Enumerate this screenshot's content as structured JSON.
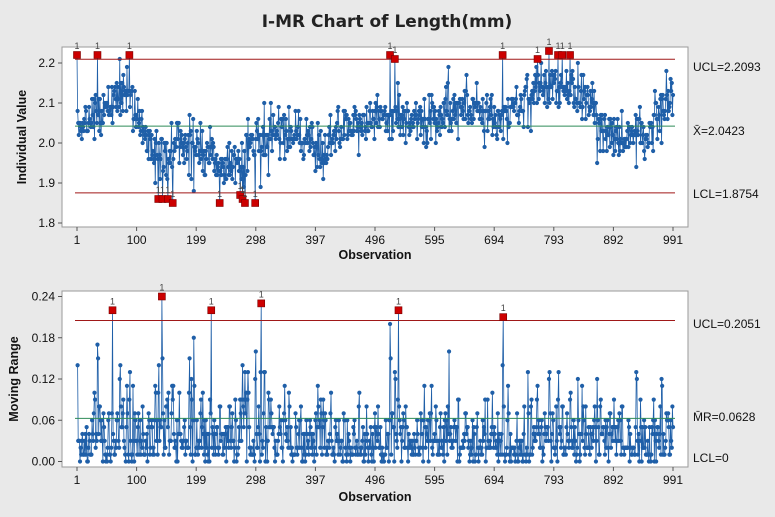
{
  "chart_data": {
    "type": "line",
    "title": "I-MR Chart of Length(mm)",
    "n_observations": 991,
    "colors": {
      "line": "#1f5fa8",
      "point": "#1f5fa8",
      "out_of_control": "#cc0000",
      "limit": "#a01818",
      "center": "#2e8b57"
    },
    "charts": [
      {
        "name": "individual",
        "xlabel": "Observation",
        "ylabel": "Individual Value",
        "x_ticks": [
          "1",
          "100",
          "199",
          "298",
          "397",
          "496",
          "595",
          "694",
          "793",
          "892",
          "991"
        ],
        "y_ticks": [
          "1.8",
          "1.9",
          "2.0",
          "2.1",
          "2.2"
        ],
        "ylim": [
          1.79,
          2.24
        ],
        "ucl": 2.2093,
        "center": 2.0423,
        "lcl": 1.8754,
        "ucl_label": "UCL=2.2093",
        "center_label": "X̄=2.0423",
        "lcl_label": "LCL=1.8754",
        "flag_text": "1",
        "trend": [
          [
            1,
            2.04
          ],
          [
            30,
            2.07
          ],
          [
            60,
            2.11
          ],
          [
            90,
            2.13
          ],
          [
            110,
            2.02
          ],
          [
            140,
            1.95
          ],
          [
            170,
            2.01
          ],
          [
            200,
            1.99
          ],
          [
            230,
            1.95
          ],
          [
            260,
            1.94
          ],
          [
            290,
            1.99
          ],
          [
            330,
            2.03
          ],
          [
            370,
            2.02
          ],
          [
            400,
            1.97
          ],
          [
            440,
            2.03
          ],
          [
            480,
            2.06
          ],
          [
            520,
            2.07
          ],
          [
            560,
            2.06
          ],
          [
            600,
            2.07
          ],
          [
            650,
            2.09
          ],
          [
            700,
            2.06
          ],
          [
            740,
            2.1
          ],
          [
            770,
            2.14
          ],
          [
            800,
            2.15
          ],
          [
            840,
            2.12
          ],
          [
            870,
            2.04
          ],
          [
            900,
            2.01
          ],
          [
            940,
            2.03
          ],
          [
            970,
            2.07
          ],
          [
            991,
            2.1
          ]
        ],
        "out_of_control": [
          [
            1,
            2.22
          ],
          [
            35,
            2.22
          ],
          [
            88,
            2.22
          ],
          [
            136,
            1.86
          ],
          [
            143,
            1.86
          ],
          [
            152,
            1.86
          ],
          [
            160,
            1.85
          ],
          [
            238,
            1.85
          ],
          [
            272,
            1.87
          ],
          [
            276,
            1.86
          ],
          [
            280,
            1.85
          ],
          [
            297,
            1.85
          ],
          [
            521,
            2.22
          ],
          [
            529,
            2.21
          ],
          [
            708,
            2.22
          ],
          [
            766,
            2.21
          ],
          [
            785,
            2.23
          ],
          [
            800,
            2.22
          ],
          [
            807,
            2.22
          ],
          [
            820,
            2.22
          ]
        ]
      },
      {
        "name": "moving-range",
        "xlabel": "Observation",
        "ylabel": "Moving Range",
        "x_ticks": [
          "1",
          "100",
          "199",
          "298",
          "397",
          "496",
          "595",
          "694",
          "793",
          "892",
          "991"
        ],
        "y_ticks": [
          "0.00",
          "0.06",
          "0.12",
          "0.18",
          "0.24"
        ],
        "ylim": [
          -0.008,
          0.248
        ],
        "ucl": 0.2051,
        "center": 0.0628,
        "lcl": 0,
        "ucl_label": "UCL=0.2051",
        "center_label": "M̄R=0.0628",
        "lcl_label": "LCL=0",
        "flag_text": "1",
        "out_of_control": [
          [
            60,
            0.22
          ],
          [
            142,
            0.24
          ],
          [
            224,
            0.22
          ],
          [
            307,
            0.23
          ],
          [
            535,
            0.22
          ],
          [
            709,
            0.21
          ]
        ]
      }
    ]
  }
}
